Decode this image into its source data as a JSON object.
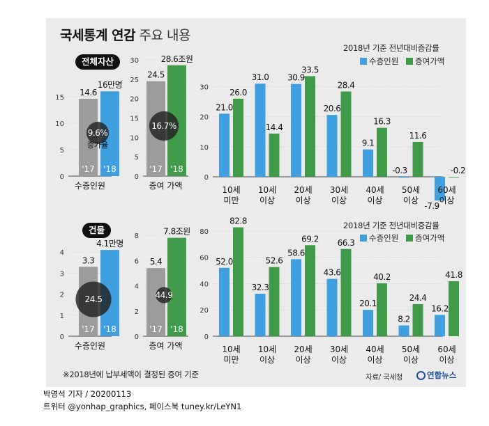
{
  "header": {
    "title_bold": "국세통계 연감",
    "title_light": "주요 내용"
  },
  "colors": {
    "blue": "#3f9fdf",
    "green": "#3f9b48",
    "gray": "#9c9c9c",
    "circle": "#222222",
    "panel": "#ebebeb"
  },
  "legend": {
    "title": "2018년 기준 전년대비증감률",
    "blue_label": "수증인원",
    "green_label": "증여가액"
  },
  "footnote": "※2018년에 납부세액이 결정된 증여 기준",
  "source": "자료/ 국세청",
  "logo": "연합뉴스",
  "byline": "박영석 기자 / 20200113",
  "social": "트위터 @yonhap_graphics, 페이스북 tuney.kr/LeYN1",
  "chart_data": [
    {
      "type": "bar",
      "section": "전체자산",
      "ylim": [
        0,
        18
      ],
      "yticks": [
        0,
        5,
        10,
        15
      ],
      "categories": [
        "'17",
        "'18"
      ],
      "values": [
        14.6,
        16
      ],
      "labels": [
        "14.6",
        "16만명"
      ],
      "xlabel": "수증인원",
      "circle": {
        "label": "9.6%",
        "sublabel": "증가율",
        "value": 9.6
      }
    },
    {
      "type": "bar",
      "section": "전체자산",
      "ylim": [
        0,
        30
      ],
      "yticks": [
        0,
        5,
        10,
        15,
        20,
        25,
        30
      ],
      "categories": [
        "'17",
        "'18"
      ],
      "values": [
        24.5,
        28.6
      ],
      "labels": [
        "24.5",
        "28.6조원"
      ],
      "xlabel": "증여 가액",
      "circle": {
        "label": "16.7%",
        "value": 16.7
      }
    },
    {
      "type": "bar",
      "section": "전체자산",
      "title": "2018년 기준 전년대비증감률",
      "ylim": [
        -10,
        38
      ],
      "yticks": [
        0,
        10,
        20,
        30
      ],
      "categories": [
        [
          "10세",
          "미만"
        ],
        [
          "10세",
          "이상"
        ],
        [
          "20세",
          "이상"
        ],
        [
          "30세",
          "이상"
        ],
        [
          "40세",
          "이상"
        ],
        [
          "50세",
          "이상"
        ],
        [
          "60세",
          "이상"
        ]
      ],
      "series": [
        {
          "name": "수증인원",
          "values": [
            21.0,
            31.0,
            30.9,
            20.6,
            9.1,
            -0.3,
            -7.9
          ]
        },
        {
          "name": "증여가액",
          "values": [
            26.0,
            14.4,
            33.5,
            28.4,
            16.3,
            11.6,
            -0.2
          ]
        }
      ]
    },
    {
      "type": "bar",
      "section": "건물",
      "ylim": [
        0,
        4.5
      ],
      "yticks": [
        0,
        1,
        2,
        3,
        4
      ],
      "categories": [
        "'17",
        "'18"
      ],
      "values": [
        3.3,
        4.1
      ],
      "labels": [
        "3.3",
        "4.1만명"
      ],
      "xlabel": "수증인원",
      "circle": {
        "label": "24.5",
        "value": 24.5
      }
    },
    {
      "type": "bar",
      "section": "건물",
      "ylim": [
        0,
        8
      ],
      "yticks": [
        0,
        2,
        4,
        6,
        8
      ],
      "categories": [
        "'17",
        "'18"
      ],
      "values": [
        5.4,
        7.8
      ],
      "labels": [
        "5.4",
        "7.8조원"
      ],
      "xlabel": "증여 가액",
      "circle": {
        "label": "44.9",
        "value": 44.9
      }
    },
    {
      "type": "bar",
      "section": "건물",
      "title": "2018년 기준 전년대비증감률",
      "ylim": [
        0,
        90
      ],
      "yticks": [
        0,
        20,
        40,
        60,
        80
      ],
      "categories": [
        [
          "10세",
          "미만"
        ],
        [
          "10세",
          "이상"
        ],
        [
          "20세",
          "이상"
        ],
        [
          "30세",
          "이상"
        ],
        [
          "40세",
          "이상"
        ],
        [
          "50세",
          "이상"
        ],
        [
          "60세",
          "이상"
        ]
      ],
      "series": [
        {
          "name": "수증인원",
          "values": [
            52.0,
            32.3,
            58.6,
            43.6,
            20.1,
            8.2,
            16.2
          ]
        },
        {
          "name": "증여가액",
          "values": [
            82.8,
            52.6,
            69.2,
            66.3,
            40.2,
            24.4,
            41.8
          ]
        }
      ]
    }
  ]
}
